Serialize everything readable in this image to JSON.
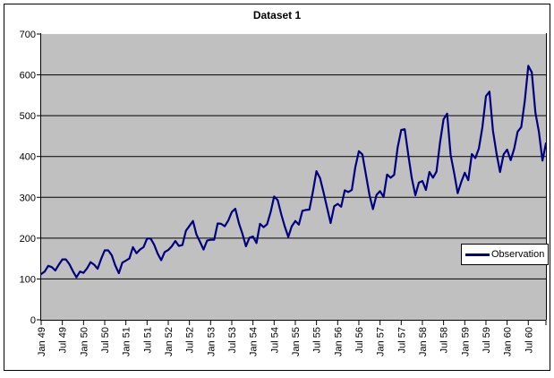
{
  "chart_data": {
    "type": "line",
    "title": "Dataset 1",
    "xlabel": "",
    "ylabel": "",
    "ylim": [
      0,
      700
    ],
    "y_ticks": [
      0,
      100,
      200,
      300,
      400,
      500,
      600,
      700
    ],
    "grid": "horizontal",
    "plot_bg_color": "#c0c0c0",
    "gridline_color": "#000000",
    "axis_color": "#000000",
    "legend_position": "middle-right",
    "x_tick_labels": [
      "Jan 49",
      "Jul 49",
      "Jan 50",
      "Jul 50",
      "Jan 51",
      "Jul 51",
      "Jan 52",
      "Jul 52",
      "Jan 53",
      "Jul 53",
      "Jan 54",
      "Jul 54",
      "Jan 55",
      "Jul 55",
      "Jan 56",
      "Jul 56",
      "Jan 57",
      "Jul 57",
      "Jan 58",
      "Jul 58",
      "Jan 59",
      "Jul 59",
      "Jan 60",
      "Jul 60"
    ],
    "x_label_every_n_points": 6,
    "series": [
      {
        "name": "Observation",
        "color": "#000080",
        "values": [
          112,
          118,
          132,
          129,
          121,
          135,
          148,
          148,
          136,
          119,
          104,
          118,
          115,
          126,
          141,
          135,
          125,
          149,
          170,
          170,
          158,
          133,
          114,
          140,
          145,
          150,
          178,
          163,
          172,
          178,
          199,
          199,
          184,
          162,
          146,
          166,
          171,
          180,
          193,
          181,
          183,
          218,
          230,
          242,
          209,
          191,
          172,
          194,
          196,
          196,
          236,
          235,
          229,
          243,
          264,
          272,
          237,
          211,
          180,
          201,
          204,
          188,
          235,
          227,
          234,
          264,
          302,
          293,
          259,
          229,
          203,
          229,
          242,
          233,
          267,
          269,
          270,
          315,
          364,
          347,
          312,
          274,
          237,
          278,
          284,
          277,
          317,
          313,
          318,
          374,
          413,
          405,
          355,
          306,
          271,
          306,
          315,
          301,
          356,
          348,
          355,
          422,
          465,
          467,
          404,
          347,
          305,
          336,
          340,
          318,
          362,
          348,
          363,
          435,
          491,
          505,
          404,
          359,
          310,
          337,
          360,
          342,
          406,
          396,
          420,
          472,
          548,
          559,
          463,
          407,
          362,
          405,
          417,
          391,
          419,
          461,
          472,
          535,
          622,
          606,
          508,
          461,
          390,
          432
        ]
      }
    ]
  }
}
